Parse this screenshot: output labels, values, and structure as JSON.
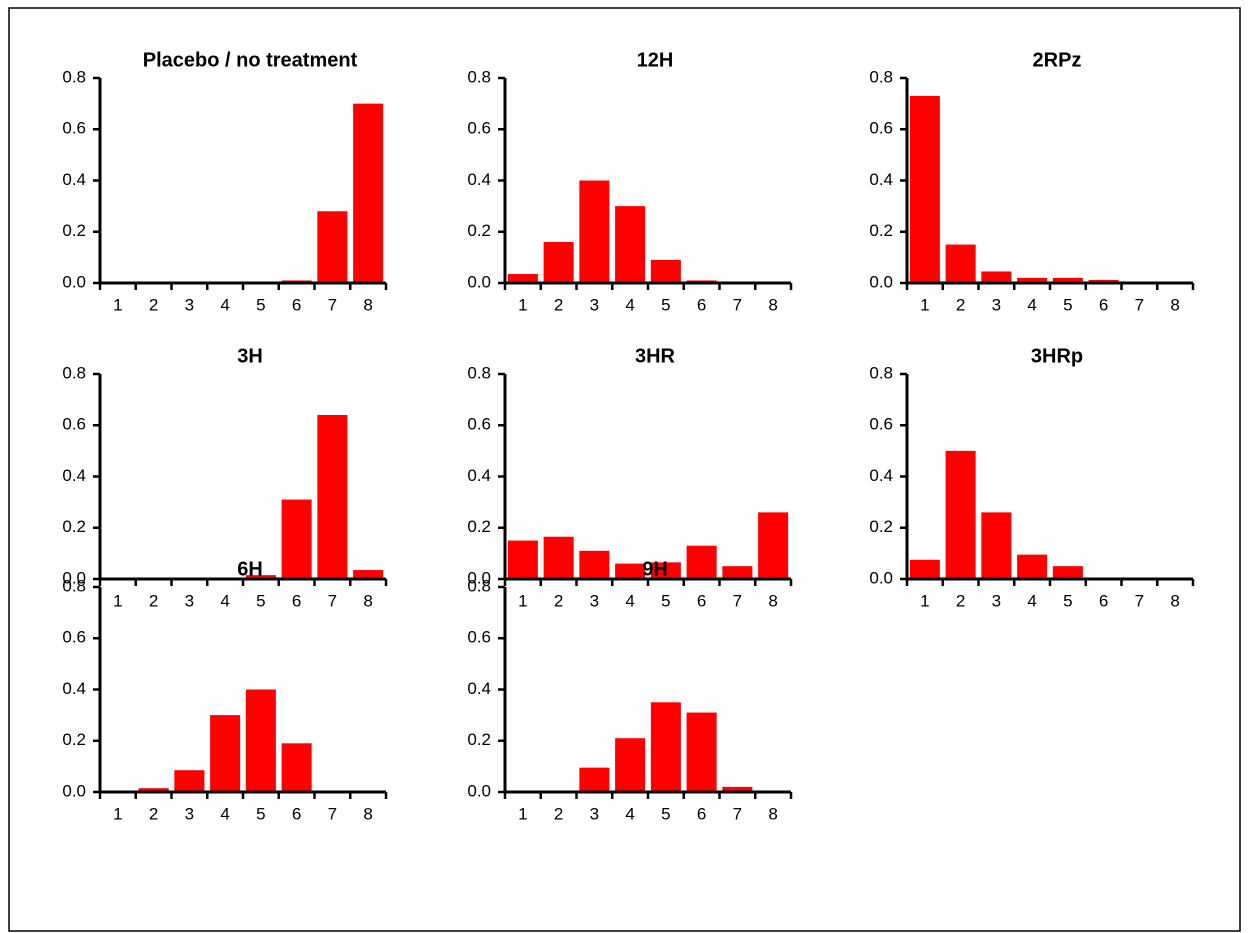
{
  "chart_data": [
    {
      "type": "bar",
      "title": "Placebo / no treatment",
      "categories": [
        "1",
        "2",
        "3",
        "4",
        "5",
        "6",
        "7",
        "8"
      ],
      "values": [
        0,
        0,
        0,
        0,
        0,
        0.01,
        0.28,
        0.7
      ],
      "color": "#ff0000",
      "ylim": [
        0,
        0.8
      ],
      "yticks": [
        {
          "value": 0,
          "label": "0.0"
        },
        0.2,
        0.4,
        0.6,
        0.8
      ]
    },
    {
      "type": "bar",
      "title": "12H",
      "categories": [
        "1",
        "2",
        "3",
        "4",
        "5",
        "6",
        "7",
        "8"
      ],
      "values": [
        0.035,
        0.16,
        0.4,
        0.3,
        0.09,
        0.01,
        0,
        0
      ],
      "color": "#ff0000",
      "ylim": [
        0,
        0.8
      ],
      "yticks": [
        {
          "value": 0,
          "label": "0.0"
        },
        0.2,
        0.4,
        0.6,
        0.8
      ]
    },
    {
      "type": "bar",
      "title": "2RPz",
      "categories": [
        "1",
        "2",
        "3",
        "4",
        "5",
        "6",
        "7",
        "8"
      ],
      "values": [
        0.73,
        0.15,
        0.045,
        0.02,
        0.02,
        0.012,
        0,
        0
      ],
      "color": "#ff0000",
      "ylim": [
        0,
        0.8
      ],
      "yticks": [
        {
          "value": 0,
          "label": "0.0"
        },
        0.2,
        0.4,
        0.6,
        0.8
      ]
    },
    {
      "type": "bar",
      "title": "3H",
      "categories": [
        "1",
        "2",
        "3",
        "4",
        "5",
        "6",
        "7",
        "8"
      ],
      "values": [
        0,
        0,
        0,
        0,
        0.015,
        0.31,
        0.64,
        0.035
      ],
      "color": "#ff0000",
      "ylim": [
        0,
        0.8
      ],
      "yticks": [
        {
          "value": 0,
          "label": "0.0"
        },
        0.2,
        0.4,
        0.6,
        0.8
      ]
    },
    {
      "type": "bar",
      "title": "3HR",
      "categories": [
        "1",
        "2",
        "3",
        "4",
        "5",
        "6",
        "7",
        "8"
      ],
      "values": [
        0.15,
        0.165,
        0.11,
        0.06,
        0.065,
        0.13,
        0.05,
        0.26
      ],
      "color": "#ff0000",
      "ylim": [
        0,
        0.8
      ],
      "yticks": [
        {
          "value": 0,
          "label": "0.0"
        },
        0.2,
        0.4,
        0.6,
        0.8
      ]
    },
    {
      "type": "bar",
      "title": "3HRp",
      "categories": [
        "1",
        "2",
        "3",
        "4",
        "5",
        "6",
        "7",
        "8"
      ],
      "values": [
        0.075,
        0.5,
        0.26,
        0.095,
        0.05,
        0.005,
        0,
        0
      ],
      "color": "#ff0000",
      "ylim": [
        0,
        0.8
      ],
      "yticks": [
        {
          "value": 0,
          "label": "0.0"
        },
        0.2,
        0.4,
        0.6,
        0.8
      ]
    },
    {
      "type": "bar",
      "title": "6H",
      "categories": [
        "1",
        "2",
        "3",
        "4",
        "5",
        "6",
        "7",
        "8"
      ],
      "values": [
        0,
        0.015,
        0.085,
        0.3,
        0.4,
        0.19,
        0,
        0
      ],
      "color": "#ff0000",
      "ylim": [
        0,
        0.8
      ],
      "yticks": [
        {
          "value": 0,
          "label": "0.0"
        },
        0.2,
        0.4,
        0.6,
        0.8
      ]
    },
    {
      "type": "bar",
      "title": "9H",
      "categories": [
        "1",
        "2",
        "3",
        "4",
        "5",
        "6",
        "7",
        "8"
      ],
      "values": [
        0,
        0,
        0.095,
        0.21,
        0.35,
        0.31,
        0.02,
        0
      ],
      "color": "#ff0000",
      "ylim": [
        0,
        0.8
      ],
      "yticks": [
        {
          "value": 0,
          "label": "0.0"
        },
        0.2,
        0.4,
        0.6,
        0.8
      ]
    }
  ]
}
